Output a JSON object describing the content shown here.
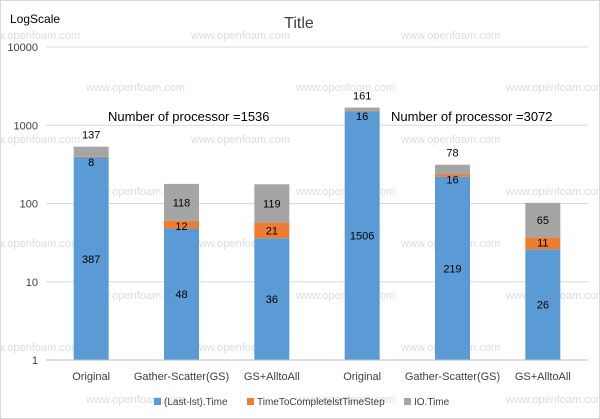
{
  "chart_data": {
    "type": "bar",
    "stacked": true,
    "y_scale": "log",
    "title": "Title",
    "ylabel": "LogScale",
    "ylim": [
      1,
      10000
    ],
    "yticks": [
      "1",
      "10",
      "100",
      "1000",
      "10000"
    ],
    "grid": true,
    "legend_position": "bottom",
    "categories": [
      "Original",
      "Gather-Scatter(GS)",
      "GS+AlltoAll",
      "Original",
      "Gather-Scatter(GS)",
      "GS+AlltoAll"
    ],
    "series": [
      {
        "name": "(Last-lst).Time",
        "color": "#5b9bd5",
        "values": [
          387,
          48,
          36,
          1506,
          219,
          26
        ]
      },
      {
        "name": "TimeToCompletelstTimeStep",
        "color": "#ed7d31",
        "values": [
          8,
          12,
          21,
          16,
          16,
          11
        ]
      },
      {
        "name": "IO.Time",
        "color": "#a5a5a5",
        "values": [
          137,
          118,
          119,
          161,
          78,
          65
        ]
      }
    ],
    "annotations": [
      "Number of processor =1536",
      "Number of processor =3072"
    ],
    "watermark": "www.openfoam.com"
  }
}
